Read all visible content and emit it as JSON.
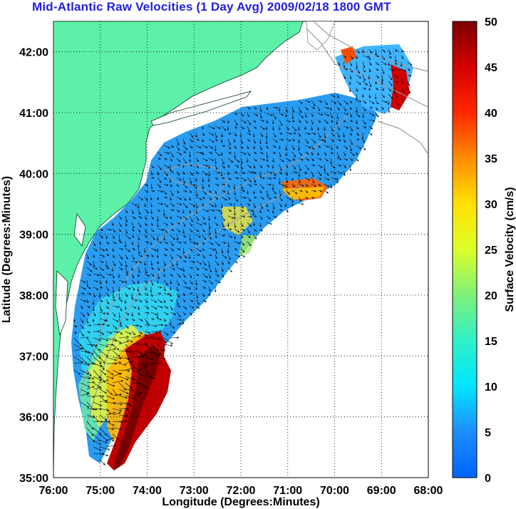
{
  "title": "Mid-Atlantic Raw Velocities (1 Day Avg) 2009/02/18 1800 GMT",
  "xlabel": "Longitude (Degrees:Minutes)",
  "ylabel": "Latitude (Degrees:Minutes)",
  "colorbar_label": "Surface Velocity (cm/s)",
  "x_ticks": [
    "76:00",
    "75:00",
    "74:00",
    "73:00",
    "72:00",
    "71:00",
    "70:00",
    "69:00",
    "68:00"
  ],
  "y_ticks": [
    "35:00",
    "36:00",
    "37:00",
    "38:00",
    "39:00",
    "40:00",
    "41:00",
    "42:00"
  ],
  "colorbar_ticks": [
    "0",
    "5",
    "10",
    "15",
    "20",
    "25",
    "30",
    "35",
    "40",
    "45",
    "50"
  ],
  "colors": {
    "land": "#5cf0a8",
    "title": "#1f1fe0",
    "contour": "#9a9a9a",
    "grid": "#000000"
  },
  "chart_data": {
    "type": "heatmap",
    "title": "Mid-Atlantic Raw Velocities (1 Day Avg) 2009/02/18 1800 GMT",
    "xlabel": "Longitude (Degrees:Minutes)",
    "ylabel": "Latitude (Degrees:Minutes)",
    "xlim": [
      -76,
      -68
    ],
    "ylim": [
      35,
      42.5
    ],
    "colorbar": {
      "label": "Surface Velocity (cm/s)",
      "range": [
        0,
        50
      ]
    },
    "grid": true
  }
}
